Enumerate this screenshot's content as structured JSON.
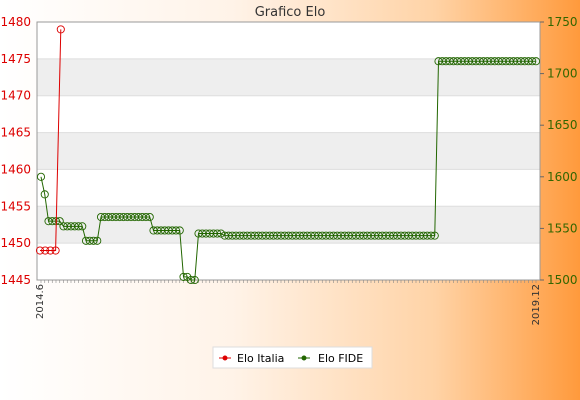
{
  "chart_data": {
    "type": "line",
    "title": "Grafico Elo",
    "colors": {
      "italia": "#dd0000",
      "fide": "#226600",
      "band": "#eeeeee",
      "plot": "#ffffff"
    },
    "y_left": {
      "ylim": [
        1445,
        1480
      ],
      "ticks": [
        1445,
        1450,
        1455,
        1460,
        1465,
        1470,
        1475,
        1480
      ]
    },
    "y_right": {
      "ylim": [
        1500,
        1750
      ],
      "ticks": [
        1500,
        1550,
        1600,
        1650,
        1700,
        1750
      ]
    },
    "x_first_label": "2014.6",
    "x_last_label": "2019.12",
    "legend_position": "bottom-center",
    "series": [
      {
        "name": "Elo Italia",
        "axis": "left",
        "values": [
          1449,
          1449,
          1449,
          1449,
          1479
        ]
      },
      {
        "name": "Elo FIDE",
        "axis": "right",
        "values": [
          1600,
          1583,
          1557,
          1557,
          1557,
          1557,
          1552,
          1552,
          1552,
          1552,
          1552,
          1552,
          1538,
          1538,
          1538,
          1538,
          1561,
          1561,
          1561,
          1561,
          1561,
          1561,
          1561,
          1561,
          1561,
          1561,
          1561,
          1561,
          1561,
          1561,
          1548,
          1548,
          1548,
          1548,
          1548,
          1548,
          1548,
          1548,
          1503,
          1503,
          1500,
          1500,
          1545,
          1545,
          1545,
          1545,
          1545,
          1545,
          1545,
          1543,
          1543,
          1543,
          1543,
          1543,
          1543,
          1543,
          1543,
          1543,
          1543,
          1543,
          1543,
          1543,
          1543,
          1543,
          1543,
          1543,
          1543,
          1543,
          1543,
          1543,
          1543,
          1543,
          1543,
          1543,
          1543,
          1543,
          1543,
          1543,
          1543,
          1543,
          1543,
          1543,
          1543,
          1543,
          1543,
          1543,
          1543,
          1543,
          1543,
          1543,
          1543,
          1543,
          1543,
          1543,
          1543,
          1543,
          1543,
          1543,
          1543,
          1543,
          1543,
          1543,
          1543,
          1543,
          1543,
          1543,
          1712,
          1712,
          1712,
          1712,
          1712,
          1712,
          1712,
          1712,
          1712,
          1712,
          1712,
          1712,
          1712,
          1712,
          1712,
          1712,
          1712,
          1712,
          1712,
          1712,
          1712,
          1712,
          1712,
          1712,
          1712,
          1712,
          1712
        ]
      }
    ]
  }
}
